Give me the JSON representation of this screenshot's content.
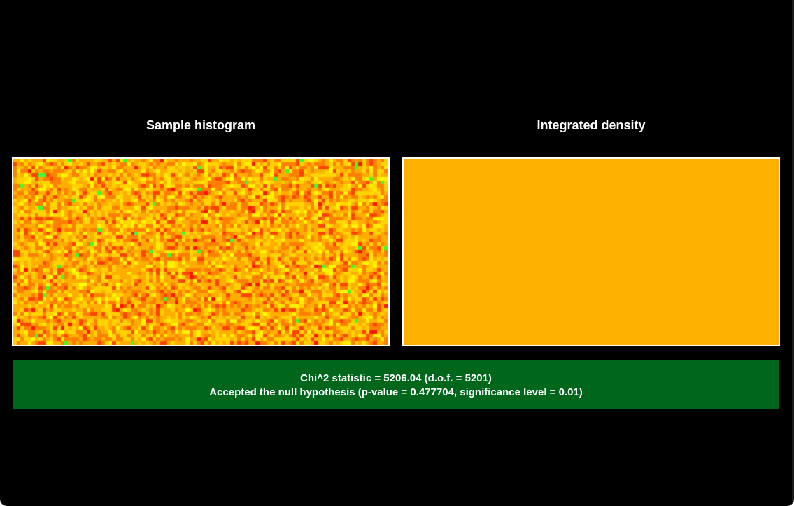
{
  "panels": {
    "sample_title": "Sample histogram",
    "density_title": "Integrated density"
  },
  "result": {
    "line1": "Chi^2 statistic = 5206.04 (d.o.f. = 5201)",
    "line2": "Accepted the null hypothesis (p-value = 0.477704, significance level = 0.01)",
    "status_color": "#00661b"
  },
  "colors": {
    "background": "#000000",
    "density_fill": "#ffb000",
    "heatmap_palette": [
      "#ff1400",
      "#ff4400",
      "#ff8000",
      "#ffae00",
      "#ffd200",
      "#fff000",
      "#ffff00",
      "#b8ff00",
      "#3cff2a"
    ]
  }
}
